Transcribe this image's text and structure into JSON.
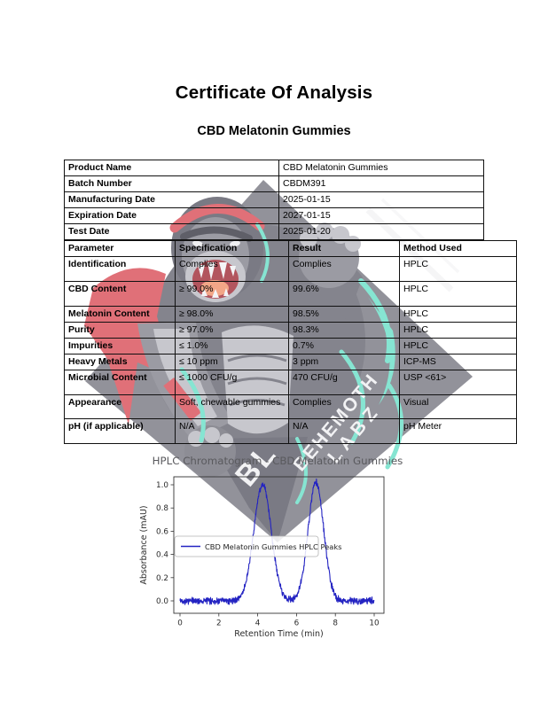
{
  "page": {
    "title": "Certificate Of Analysis",
    "subtitle": "CBD Melatonin Gummies"
  },
  "product_info": {
    "rows": [
      {
        "label": "Product Name",
        "value": "CBD Melatonin Gummies"
      },
      {
        "label": "Batch Number",
        "value": "CBDM391"
      },
      {
        "label": "Manufacturing Date",
        "value": "2025-01-15"
      },
      {
        "label": "Expiration Date",
        "value": "2027-01-15"
      },
      {
        "label": "Test Date",
        "value": "2025-01-20"
      }
    ]
  },
  "results_table": {
    "headers": [
      "Parameter",
      "Specification",
      "Result",
      "Method Used"
    ],
    "rows": [
      {
        "parameter": "Identification",
        "specification": "Complies",
        "result": "Complies",
        "method": "HPLC"
      },
      {
        "parameter": "CBD Content",
        "specification": "≥ 99.0%",
        "result": "99.6%",
        "method": "HPLC"
      },
      {
        "parameter": "Melatonin Content",
        "specification": "≥ 98.0%",
        "result": "98.5%",
        "method": "HPLC"
      },
      {
        "parameter": "Purity",
        "specification": "≥ 97.0%",
        "result": "98.3%",
        "method": "HPLC"
      },
      {
        "parameter": "Impurities",
        "specification": "≤ 1.0%",
        "result": "0.7%",
        "method": "HPLC"
      },
      {
        "parameter": "Heavy Metals",
        "specification": "≤ 10 ppm",
        "result": "3 ppm",
        "method": "ICP-MS"
      },
      {
        "parameter": "Microbial Content",
        "specification": "≤ 1000 CFU/g",
        "result": "470 CFU/g",
        "method": "USP <61>"
      },
      {
        "parameter": "Appearance",
        "specification": "Soft, chewable gummies",
        "result": "Complies",
        "method": "Visual"
      },
      {
        "parameter": "pH (if applicable)",
        "specification": "N/A",
        "result": "N/A",
        "method": "pH Meter"
      }
    ]
  },
  "watermark": {
    "brand_line1": "BEHEMOTH",
    "brand_line2": "LABZ",
    "tip_letters": "BL",
    "colors": {
      "diamond": "#92929a",
      "fur_dark": "#7a7a84",
      "fur_mid": "#9b9ba3",
      "fur_light": "#c7c7cd",
      "accent_red": "#e07078",
      "tongue": "#f2a687",
      "accent_teal": "#86e5d2",
      "text_white": "#f2f2f4"
    }
  },
  "chart_data": {
    "type": "line",
    "title": "HPLC Chromatogram - CBD Melatonin Gummies",
    "xlabel": "Retention Time (min)",
    "ylabel": "Absorbance (mAU)",
    "legend": "CBD Melatonin Gummies HPLC Peaks",
    "legend_position": "center left",
    "line_color": "#2323c2",
    "title_color": "#5a5a5e",
    "axis_color": "#333333",
    "xlim": [
      0,
      10
    ],
    "x_ticks": [
      0,
      2,
      4,
      6,
      8,
      10
    ],
    "y_ticks": [
      0.0,
      0.2,
      0.4,
      0.6,
      0.8,
      1.0
    ],
    "grid": false,
    "peaks": [
      {
        "center": 4.25,
        "height": 1.0,
        "sigma": 0.45
      },
      {
        "center": 7.0,
        "height": 1.02,
        "sigma": 0.4
      }
    ],
    "noise_amplitude": 0.035,
    "n_points": 700
  }
}
